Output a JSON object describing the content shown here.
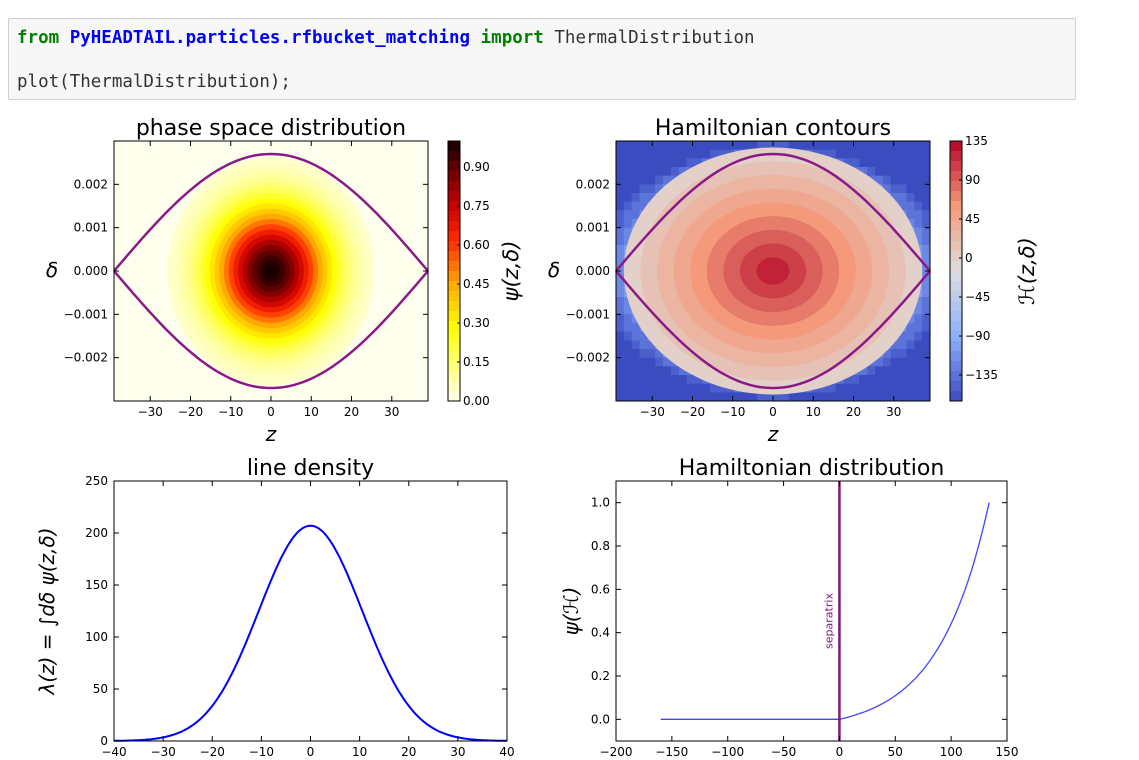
{
  "code": {
    "line1": {
      "kw_from": "from",
      "module": "PyHEADTAIL.particles.rfbucket_matching",
      "kw_import": "import",
      "name": "ThermalDistribution"
    },
    "line2": "plot(ThermalDistribution);"
  },
  "chart_data": [
    {
      "type": "heatmap",
      "title": "phase space distribution",
      "xlabel": "z",
      "ylabel": "δ",
      "xlim": [
        -39,
        39
      ],
      "ylim": [
        -0.003,
        0.003
      ],
      "xticks": [
        -30,
        -20,
        -10,
        0,
        10,
        20,
        30
      ],
      "yticks": [
        -0.002,
        -0.001,
        0.0,
        0.001,
        0.002
      ],
      "ytick_labels": [
        "−0.002",
        "−0.001",
        "0.000",
        "0.001",
        "0.002"
      ],
      "xtick_labels": [
        "−30",
        "−20",
        "−10",
        "0",
        "10",
        "20",
        "30"
      ],
      "colorbar": {
        "label": "ψ(z,δ)",
        "range": [
          0.0,
          1.0
        ],
        "ticks": [
          "0.00",
          "0.15",
          "0.30",
          "0.45",
          "0.60",
          "0.75",
          "0.90"
        ],
        "colormap": "hot_r"
      },
      "separatrix": {
        "color": "#8b1a89",
        "z_half_width": 39,
        "delta_max": 0.0027
      }
    },
    {
      "type": "heatmap",
      "title": "Hamiltonian contours",
      "xlabel": "z",
      "ylabel": "δ",
      "xlim": [
        -39,
        39
      ],
      "ylim": [
        -0.003,
        0.003
      ],
      "xticks": [
        -30,
        -20,
        -10,
        0,
        10,
        20,
        30
      ],
      "yticks": [
        -0.002,
        -0.001,
        0.0,
        0.001,
        0.002
      ],
      "ytick_labels": [
        "−0.002",
        "−0.001",
        "0.000",
        "0.001",
        "0.002"
      ],
      "xtick_labels": [
        "−30",
        "−20",
        "−10",
        "0",
        "10",
        "20",
        "30"
      ],
      "colorbar": {
        "label": "ℋ(z,δ)",
        "range": [
          -160,
          140
        ],
        "ticks": [
          "135",
          "90",
          "45",
          "0",
          "−45",
          "−90",
          "−135"
        ],
        "colormap": "coolwarm"
      },
      "separatrix": {
        "color": "#8b1a89",
        "z_half_width": 39,
        "delta_max": 0.0027
      }
    },
    {
      "type": "line",
      "title": "line density",
      "xlabel": "",
      "ylabel": "λ(z) = ∫dδ  ψ(z,δ)",
      "xlim": [
        -40,
        40
      ],
      "ylim": [
        0,
        250
      ],
      "xticks": [
        -40,
        -30,
        -20,
        -10,
        0,
        10,
        20,
        30,
        40
      ],
      "xtick_labels": [
        "−40",
        "−30",
        "−20",
        "−10",
        "0",
        "10",
        "20",
        "30",
        "40"
      ],
      "yticks": [
        0,
        50,
        100,
        150,
        200,
        250
      ],
      "ytick_labels": [
        "0",
        "50",
        "100",
        "150",
        "200",
        "250"
      ],
      "series": [
        {
          "color": "#0000ff",
          "peak": 207,
          "sigma": 10.5
        }
      ]
    },
    {
      "type": "line",
      "title": "Hamiltonian distribution",
      "xlabel": "",
      "ylabel": "ψ(ℋ)",
      "xlim": [
        -200,
        150
      ],
      "ylim": [
        -0.1,
        1.1
      ],
      "xticks": [
        -200,
        -150,
        -100,
        -50,
        0,
        50,
        100,
        150
      ],
      "xtick_labels": [
        "−200",
        "−150",
        "−100",
        "−50",
        "0",
        "50",
        "100",
        "150"
      ],
      "yticks": [
        0.0,
        0.2,
        0.4,
        0.6,
        0.8,
        1.0
      ],
      "ytick_labels": [
        "0.0",
        "0.2",
        "0.4",
        "0.6",
        "0.8",
        "1.0"
      ],
      "series": [
        {
          "color": "#4444ff",
          "x_start": -160,
          "x_end": 134,
          "y_end": 1.0
        }
      ],
      "vline": {
        "x": 0,
        "color": "#7b1a79",
        "label": "separatrix"
      }
    }
  ]
}
